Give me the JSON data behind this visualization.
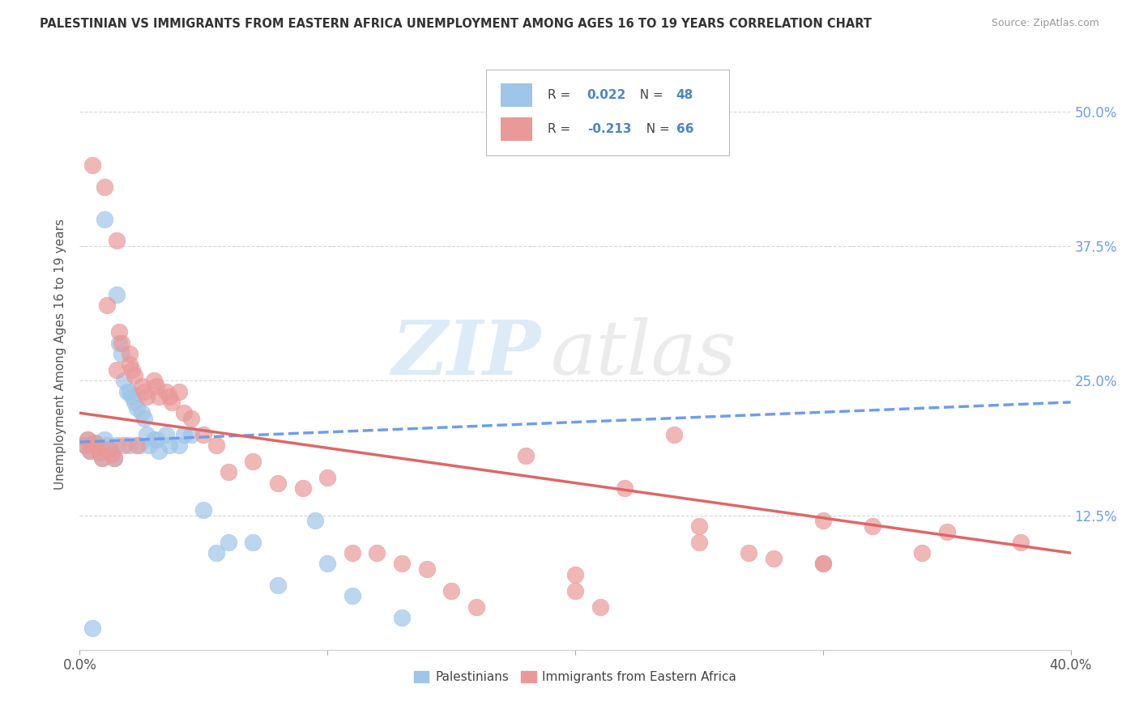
{
  "title": "PALESTINIAN VS IMMIGRANTS FROM EASTERN AFRICA UNEMPLOYMENT AMONG AGES 16 TO 19 YEARS CORRELATION CHART",
  "source": "Source: ZipAtlas.com",
  "ylabel": "Unemployment Among Ages 16 to 19 years",
  "right_yticks": [
    "50.0%",
    "37.5%",
    "25.0%",
    "12.5%"
  ],
  "right_ytick_vals": [
    0.5,
    0.375,
    0.25,
    0.125
  ],
  "xlim": [
    0.0,
    0.4
  ],
  "ylim": [
    0.0,
    0.55
  ],
  "watermark_zip": "ZIP",
  "watermark_atlas": "atlas",
  "blue_color": "#9fc5e8",
  "pink_color": "#ea9999",
  "line_blue_color": "#6d9eeb",
  "line_pink_color": "#e06666",
  "background_color": "#ffffff",
  "palestinians_x": [
    0.002,
    0.003,
    0.004,
    0.005,
    0.006,
    0.007,
    0.008,
    0.009,
    0.01,
    0.01,
    0.01,
    0.011,
    0.012,
    0.013,
    0.014,
    0.015,
    0.015,
    0.016,
    0.017,
    0.018,
    0.019,
    0.02,
    0.02,
    0.021,
    0.022,
    0.023,
    0.024,
    0.025,
    0.026,
    0.027,
    0.028,
    0.03,
    0.031,
    0.032,
    0.035,
    0.036,
    0.04,
    0.042,
    0.045,
    0.05,
    0.055,
    0.06,
    0.07,
    0.08,
    0.095,
    0.1,
    0.11,
    0.13
  ],
  "palestinians_y": [
    0.19,
    0.195,
    0.185,
    0.02,
    0.192,
    0.188,
    0.183,
    0.178,
    0.4,
    0.195,
    0.185,
    0.19,
    0.186,
    0.182,
    0.178,
    0.33,
    0.19,
    0.285,
    0.275,
    0.25,
    0.24,
    0.24,
    0.19,
    0.235,
    0.23,
    0.225,
    0.19,
    0.22,
    0.215,
    0.2,
    0.19,
    0.195,
    0.195,
    0.185,
    0.2,
    0.19,
    0.19,
    0.2,
    0.2,
    0.13,
    0.09,
    0.1,
    0.1,
    0.06,
    0.12,
    0.08,
    0.05,
    0.03
  ],
  "eastern_africa_x": [
    0.002,
    0.003,
    0.004,
    0.005,
    0.006,
    0.007,
    0.008,
    0.009,
    0.01,
    0.011,
    0.012,
    0.013,
    0.014,
    0.015,
    0.015,
    0.016,
    0.017,
    0.018,
    0.02,
    0.02,
    0.021,
    0.022,
    0.023,
    0.025,
    0.026,
    0.027,
    0.03,
    0.031,
    0.032,
    0.035,
    0.036,
    0.037,
    0.04,
    0.042,
    0.045,
    0.05,
    0.055,
    0.06,
    0.07,
    0.08,
    0.09,
    0.1,
    0.11,
    0.12,
    0.13,
    0.14,
    0.15,
    0.16,
    0.18,
    0.2,
    0.2,
    0.21,
    0.22,
    0.24,
    0.25,
    0.25,
    0.27,
    0.28,
    0.3,
    0.3,
    0.34,
    0.38,
    0.3,
    0.32,
    0.35
  ],
  "eastern_africa_y": [
    0.19,
    0.195,
    0.185,
    0.45,
    0.192,
    0.188,
    0.183,
    0.178,
    0.43,
    0.32,
    0.186,
    0.182,
    0.178,
    0.38,
    0.26,
    0.295,
    0.285,
    0.19,
    0.275,
    0.265,
    0.26,
    0.255,
    0.19,
    0.245,
    0.24,
    0.235,
    0.25,
    0.245,
    0.235,
    0.24,
    0.235,
    0.23,
    0.24,
    0.22,
    0.215,
    0.2,
    0.19,
    0.165,
    0.175,
    0.155,
    0.15,
    0.16,
    0.09,
    0.09,
    0.08,
    0.075,
    0.055,
    0.04,
    0.18,
    0.07,
    0.055,
    0.04,
    0.15,
    0.2,
    0.1,
    0.115,
    0.09,
    0.085,
    0.08,
    0.08,
    0.09,
    0.1,
    0.12,
    0.115,
    0.11
  ],
  "blue_trend_x": [
    0.0,
    0.4
  ],
  "blue_trend_y_start": 0.193,
  "blue_trend_y_end": 0.23,
  "pink_trend_x": [
    0.0,
    0.4
  ],
  "pink_trend_y_start": 0.22,
  "pink_trend_y_end": 0.09
}
